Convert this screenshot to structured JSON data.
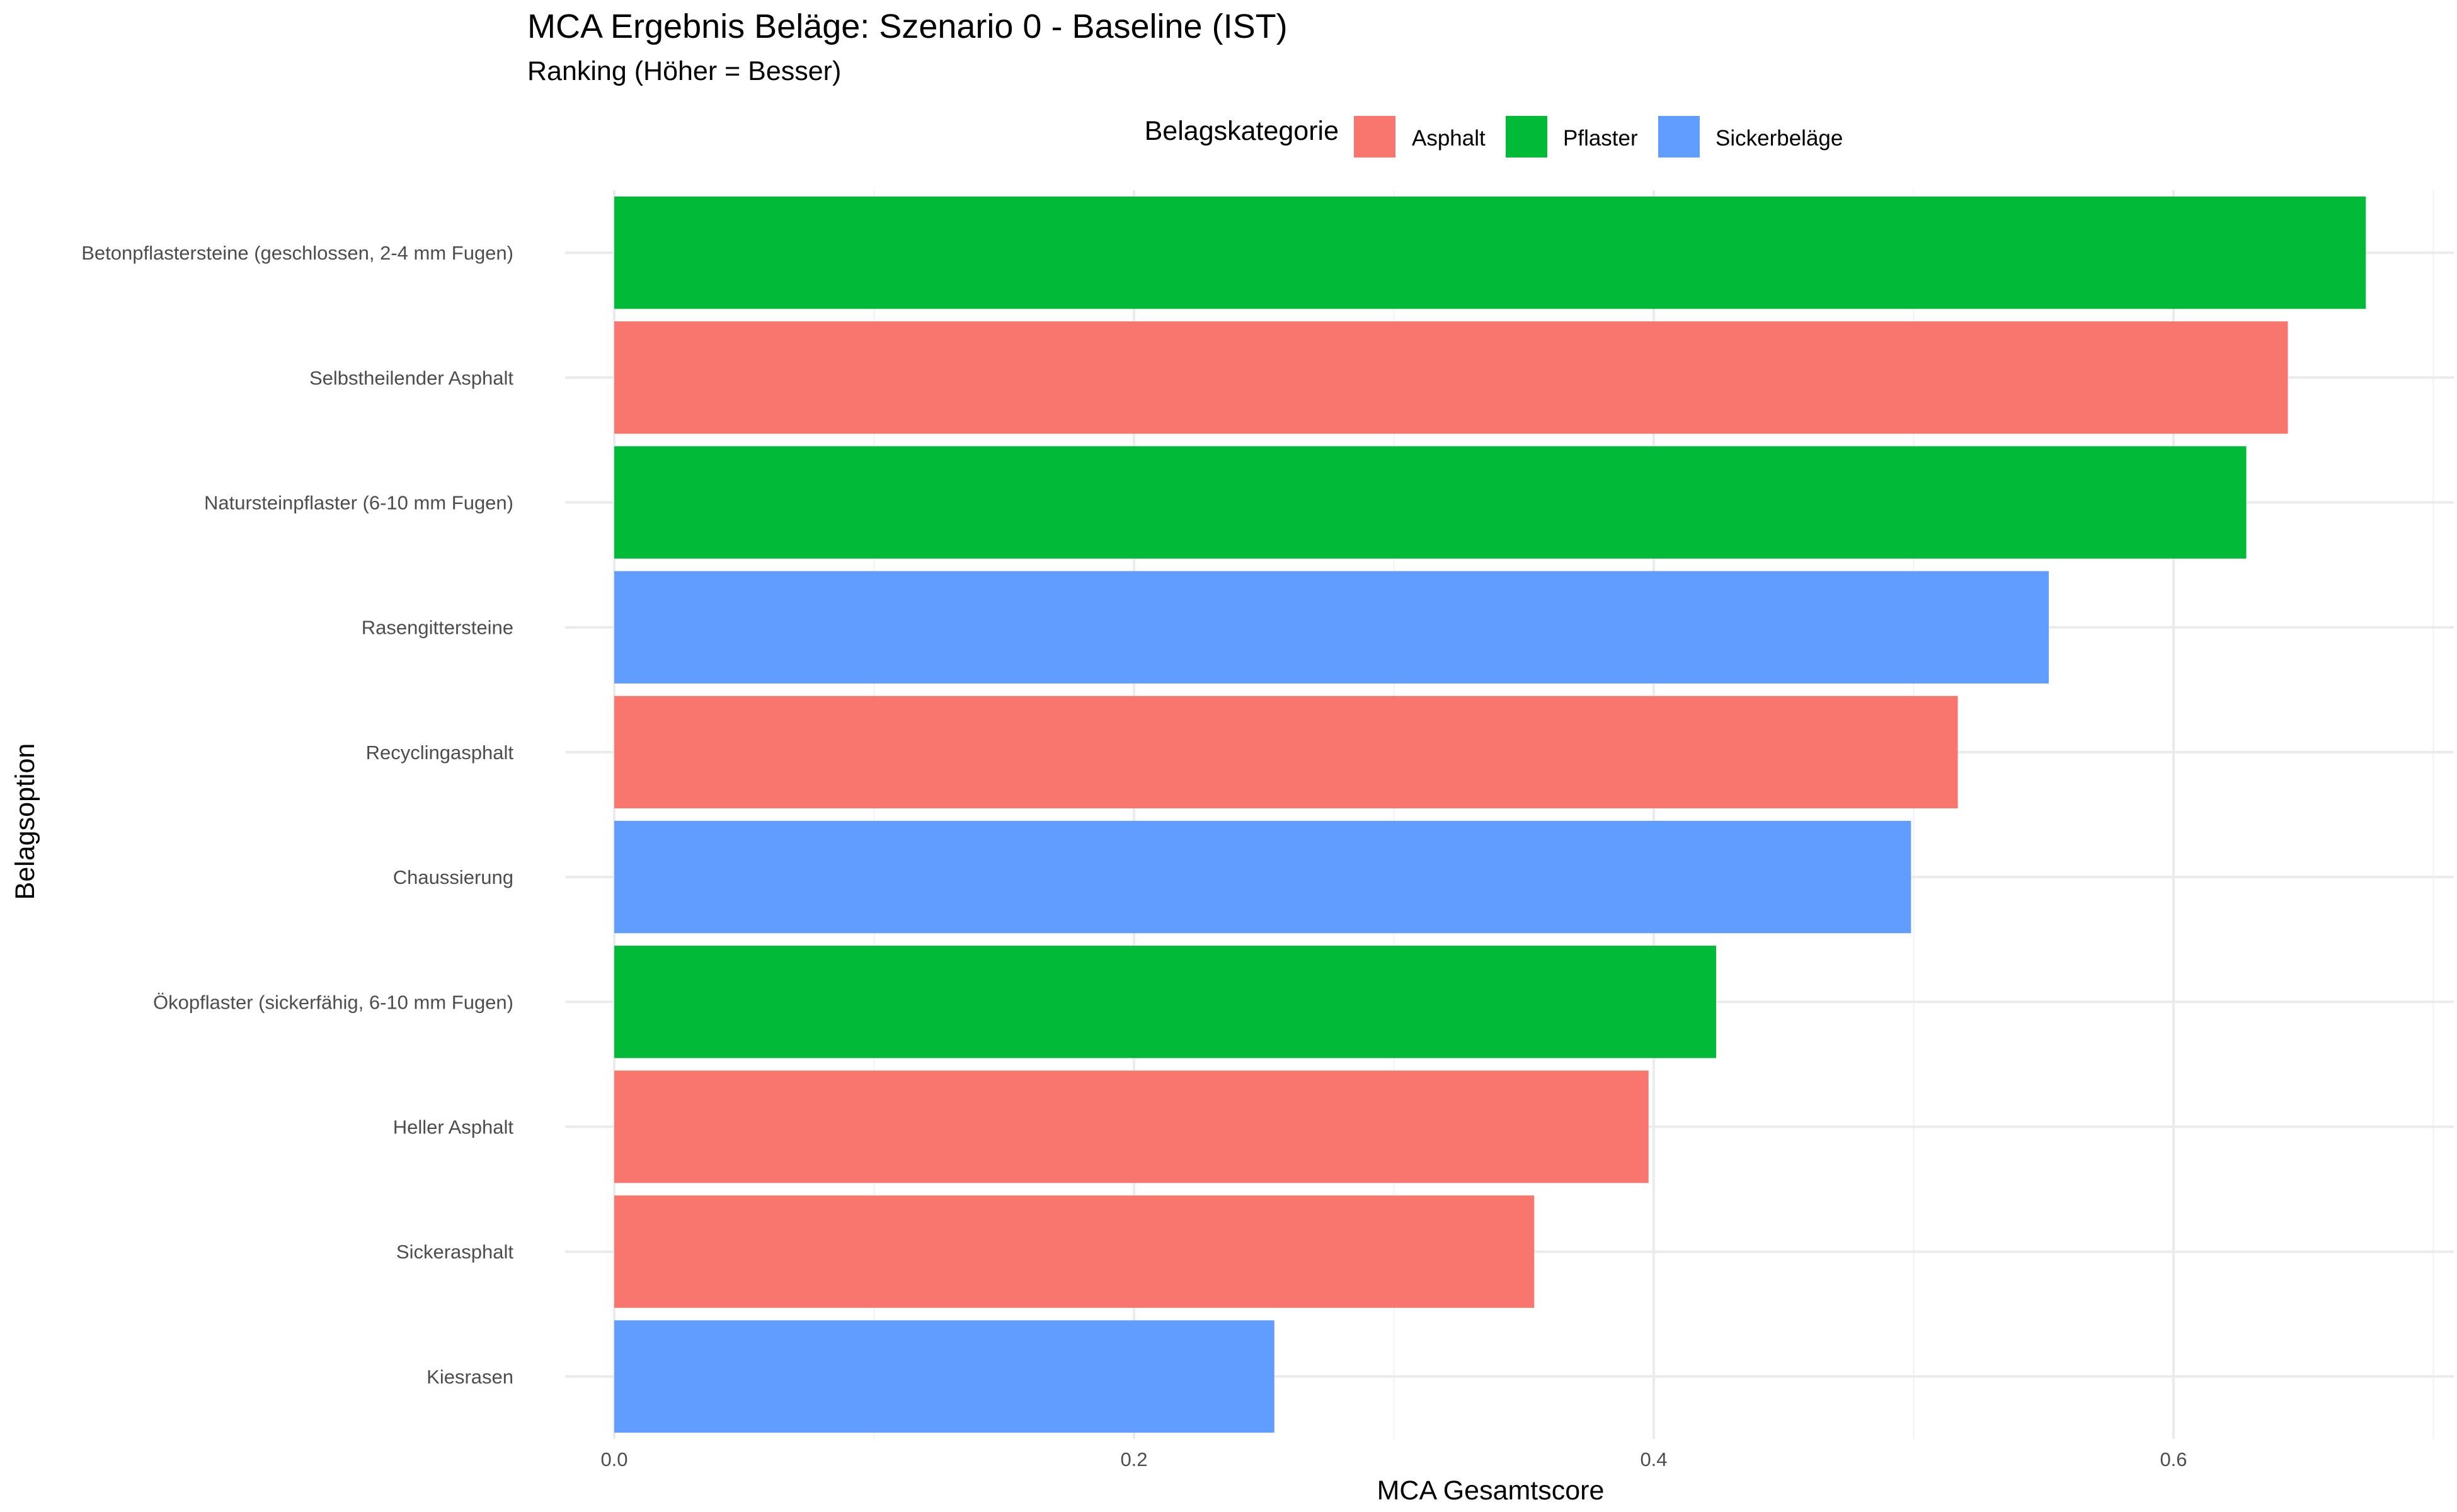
{
  "chart_data": {
    "type": "bar",
    "orientation": "horizontal",
    "title": "MCA Ergebnis Beläge: Szenario 0 - Baseline (IST)",
    "subtitle": "Ranking (Höher = Besser)",
    "xlabel": "MCA Gesamtscore",
    "ylabel": "Belagsoption",
    "xlim": [
      0,
      0.7
    ],
    "xticks": [
      "0.0",
      "0.2",
      "0.4",
      "0.6"
    ],
    "grid": true,
    "legend": {
      "title": "Belagskategorie",
      "position": "top",
      "entries": [
        {
          "label": "Asphalt",
          "color": "#F8766D"
        },
        {
          "label": "Pflaster",
          "color": "#00BA38"
        },
        {
          "label": "Sickerbeläge",
          "color": "#619CFF"
        }
      ]
    },
    "categories": [
      "Betonpflastersteine (geschlossen, 2-4 mm Fugen)",
      "Selbstheilender Asphalt",
      "Natursteinpflaster (6-10 mm Fugen)",
      "Rasengittersteine",
      "Recyclingasphalt",
      "Chaussierung",
      "Ökopflaster (sickerfähig, 6-10 mm Fugen)",
      "Heller Asphalt",
      "Sickerasphalt",
      "Kiesrasen"
    ],
    "values": [
      0.674,
      0.644,
      0.628,
      0.552,
      0.517,
      0.499,
      0.424,
      0.398,
      0.354,
      0.254
    ],
    "groups": [
      "Pflaster",
      "Asphalt",
      "Pflaster",
      "Sickerbeläge",
      "Asphalt",
      "Sickerbeläge",
      "Pflaster",
      "Asphalt",
      "Asphalt",
      "Sickerbeläge"
    ]
  }
}
